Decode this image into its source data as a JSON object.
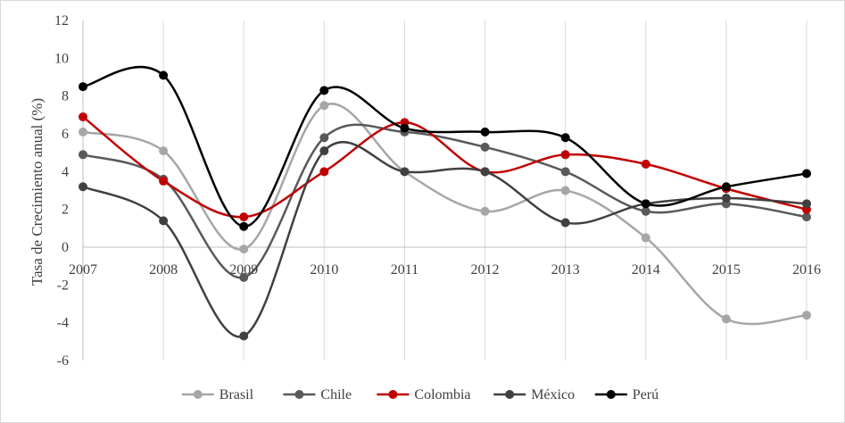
{
  "chart_data": {
    "type": "line",
    "title": "",
    "xlabel": "",
    "ylabel": "Tasa de Crecimiento anual (%)",
    "categories": [
      "2007",
      "2008",
      "2009",
      "2010",
      "2011",
      "2012",
      "2013",
      "2014",
      "2015",
      "2016"
    ],
    "ylim": [
      -6,
      12
    ],
    "yticks": [
      -6,
      -4,
      -2,
      0,
      2,
      4,
      6,
      8,
      10,
      12
    ],
    "grid": "vertical",
    "legend_position": "bottom",
    "series": [
      {
        "name": "Brasil",
        "color": "#a6a6a6",
        "values": [
          6.1,
          5.1,
          -0.1,
          7.5,
          4.0,
          1.9,
          3.0,
          0.5,
          -3.8,
          -3.6
        ]
      },
      {
        "name": "Chile",
        "color": "#595959",
        "values": [
          4.9,
          3.6,
          -1.6,
          5.8,
          6.1,
          5.3,
          4.0,
          1.9,
          2.3,
          1.6
        ]
      },
      {
        "name": "Colombia",
        "color": "#c00000",
        "values": [
          6.9,
          3.5,
          1.6,
          4.0,
          6.6,
          4.0,
          4.9,
          4.4,
          3.1,
          2.0
        ]
      },
      {
        "name": "México",
        "color": "#404040",
        "values": [
          3.2,
          1.4,
          -4.7,
          5.1,
          4.0,
          4.0,
          1.3,
          2.3,
          2.6,
          2.3
        ]
      },
      {
        "name": "Perú",
        "color": "#000000",
        "values": [
          8.5,
          9.1,
          1.1,
          8.3,
          6.3,
          6.1,
          5.8,
          2.3,
          3.2,
          3.9
        ]
      }
    ]
  }
}
